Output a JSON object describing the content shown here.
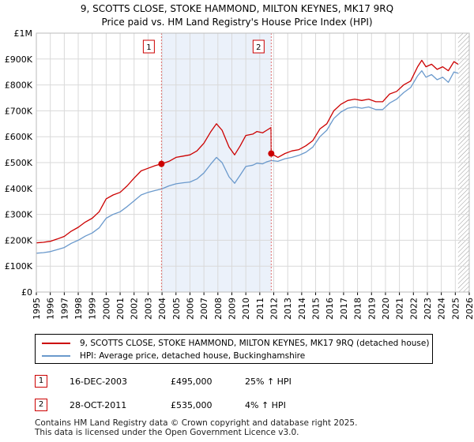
{
  "title_line1": "9, SCOTTS CLOSE, STOKE HAMMOND, MILTON KEYNES, MK17 9RQ",
  "title_line2": "Price paid vs. HM Land Registry's House Price Index (HPI)",
  "colors": {
    "property": "#cc0000",
    "hpi": "#6a99cc",
    "shade": "#dde8f7",
    "grid": "#d9d9d9",
    "marker_line": "#e07070"
  },
  "chart_data": {
    "type": "line",
    "title": "Price paid vs. HM Land Registry's House Price Index (HPI)",
    "xlim": [
      1995,
      2026
    ],
    "ylim": [
      0,
      1000000
    ],
    "y_ticks": [
      0,
      100000,
      200000,
      300000,
      400000,
      500000,
      600000,
      700000,
      800000,
      900000,
      1000000
    ],
    "y_tick_labels": [
      "£0",
      "£100K",
      "£200K",
      "£300K",
      "£400K",
      "£500K",
      "£600K",
      "£700K",
      "£800K",
      "£900K",
      "£1M"
    ],
    "x_ticks": [
      1995,
      1996,
      1997,
      1998,
      1999,
      2000,
      2001,
      2002,
      2003,
      2004,
      2005,
      2006,
      2007,
      2008,
      2009,
      2010,
      2011,
      2012,
      2013,
      2014,
      2015,
      2016,
      2017,
      2018,
      2019,
      2020,
      2021,
      2022,
      2023,
      2024,
      2025,
      2026
    ],
    "x_tick_labels": [
      "1995",
      "1996",
      "1997",
      "1998",
      "1999",
      "2000",
      "2001",
      "2002",
      "2003",
      "2004",
      "2005",
      "2006",
      "2007",
      "2008",
      "2009",
      "2010",
      "2011",
      "2012",
      "2013",
      "2014",
      "2015",
      "2016",
      "2017",
      "2018",
      "2019",
      "2020",
      "2021",
      "2022",
      "2023",
      "2024",
      "2025",
      "2026"
    ],
    "shaded_range": [
      2003.96,
      2011.82
    ],
    "hatched_from": 2025.2,
    "series": [
      {
        "name": "9, SCOTTS CLOSE, STOKE HAMMOND, MILTON KEYNES, MK17 9RQ (detached house)",
        "color": "#cc0000",
        "x": [
          1995,
          1995.5,
          1996,
          1996.5,
          1997,
          1997.5,
          1998,
          1998.5,
          1999,
          1999.5,
          2000,
          2000.5,
          2001,
          2001.5,
          2002,
          2002.5,
          2003,
          2003.5,
          2003.96,
          2004.5,
          2005,
          2005.5,
          2006,
          2006.5,
          2007,
          2007.5,
          2007.9,
          2008.3,
          2008.8,
          2009.2,
          2009.6,
          2010,
          2010.5,
          2010.8,
          2011.2,
          2011.5,
          2011.8,
          2011.82,
          2012.3,
          2012.8,
          2013.3,
          2013.8,
          2014.3,
          2014.8,
          2015.3,
          2015.8,
          2016.3,
          2016.8,
          2017.3,
          2017.8,
          2018.3,
          2018.8,
          2019.3,
          2019.8,
          2020.3,
          2020.8,
          2021.3,
          2021.8,
          2022.3,
          2022.6,
          2022.9,
          2023.3,
          2023.7,
          2024.1,
          2024.5,
          2024.9,
          2025.2
        ],
        "values": [
          190000,
          192000,
          196000,
          205000,
          215000,
          235000,
          250000,
          270000,
          285000,
          310000,
          360000,
          375000,
          385000,
          410000,
          440000,
          468000,
          478000,
          488000,
          495000,
          505000,
          520000,
          525000,
          530000,
          545000,
          575000,
          620000,
          650000,
          625000,
          560000,
          530000,
          565000,
          605000,
          610000,
          620000,
          615000,
          625000,
          635000,
          535000,
          520000,
          535000,
          545000,
          550000,
          565000,
          585000,
          630000,
          650000,
          700000,
          725000,
          740000,
          745000,
          740000,
          745000,
          735000,
          735000,
          765000,
          775000,
          800000,
          815000,
          870000,
          895000,
          870000,
          880000,
          860000,
          870000,
          855000,
          890000,
          880000
        ]
      },
      {
        "name": "HPI: Average price, detached house, Buckinghamshire",
        "color": "#6a99cc",
        "x": [
          1995,
          1995.5,
          1996,
          1996.5,
          1997,
          1997.5,
          1998,
          1998.5,
          1999,
          1999.5,
          2000,
          2000.5,
          2001,
          2001.5,
          2002,
          2002.5,
          2003,
          2003.5,
          2003.96,
          2004.5,
          2005,
          2005.5,
          2006,
          2006.5,
          2007,
          2007.5,
          2007.9,
          2008.3,
          2008.8,
          2009.2,
          2009.6,
          2010,
          2010.5,
          2010.8,
          2011.2,
          2011.5,
          2011.82,
          2012.3,
          2012.8,
          2013.3,
          2013.8,
          2014.3,
          2014.8,
          2015.3,
          2015.8,
          2016.3,
          2016.8,
          2017.3,
          2017.8,
          2018.3,
          2018.8,
          2019.3,
          2019.8,
          2020.3,
          2020.8,
          2021.3,
          2021.8,
          2022.3,
          2022.6,
          2022.9,
          2023.3,
          2023.7,
          2024.1,
          2024.5,
          2024.9,
          2025.2
        ],
        "values": [
          150000,
          152000,
          156000,
          164000,
          172000,
          188000,
          200000,
          216000,
          228000,
          248000,
          285000,
          300000,
          310000,
          330000,
          352000,
          375000,
          385000,
          392000,
          398000,
          410000,
          418000,
          422000,
          425000,
          437000,
          460000,
          495000,
          520000,
          500000,
          445000,
          420000,
          452000,
          485000,
          490000,
          498000,
          495000,
          503000,
          508000,
          505000,
          515000,
          520000,
          528000,
          540000,
          560000,
          600000,
          625000,
          670000,
          695000,
          710000,
          715000,
          710000,
          715000,
          705000,
          705000,
          730000,
          745000,
          770000,
          790000,
          835000,
          855000,
          830000,
          840000,
          820000,
          830000,
          810000,
          850000,
          845000
        ]
      }
    ],
    "transactions": [
      {
        "id": "1",
        "x": 2003.96,
        "value": 495000
      },
      {
        "id": "2",
        "x": 2011.82,
        "value": 535000
      }
    ]
  },
  "legend": {
    "property_label": "9, SCOTTS CLOSE, STOKE HAMMOND, MILTON KEYNES, MK17 9RQ (detached house)",
    "hpi_label": "HPI: Average price, detached house, Buckinghamshire"
  },
  "transactions_table": [
    {
      "num": "1",
      "date": "16-DEC-2003",
      "price": "£495,000",
      "hpi": "25% ↑ HPI"
    },
    {
      "num": "2",
      "date": "28-OCT-2011",
      "price": "£535,000",
      "hpi": "4% ↑ HPI"
    }
  ],
  "footer": {
    "line1": "Contains HM Land Registry data © Crown copyright and database right 2025.",
    "line2": "This data is licensed under the Open Government Licence v3.0."
  }
}
